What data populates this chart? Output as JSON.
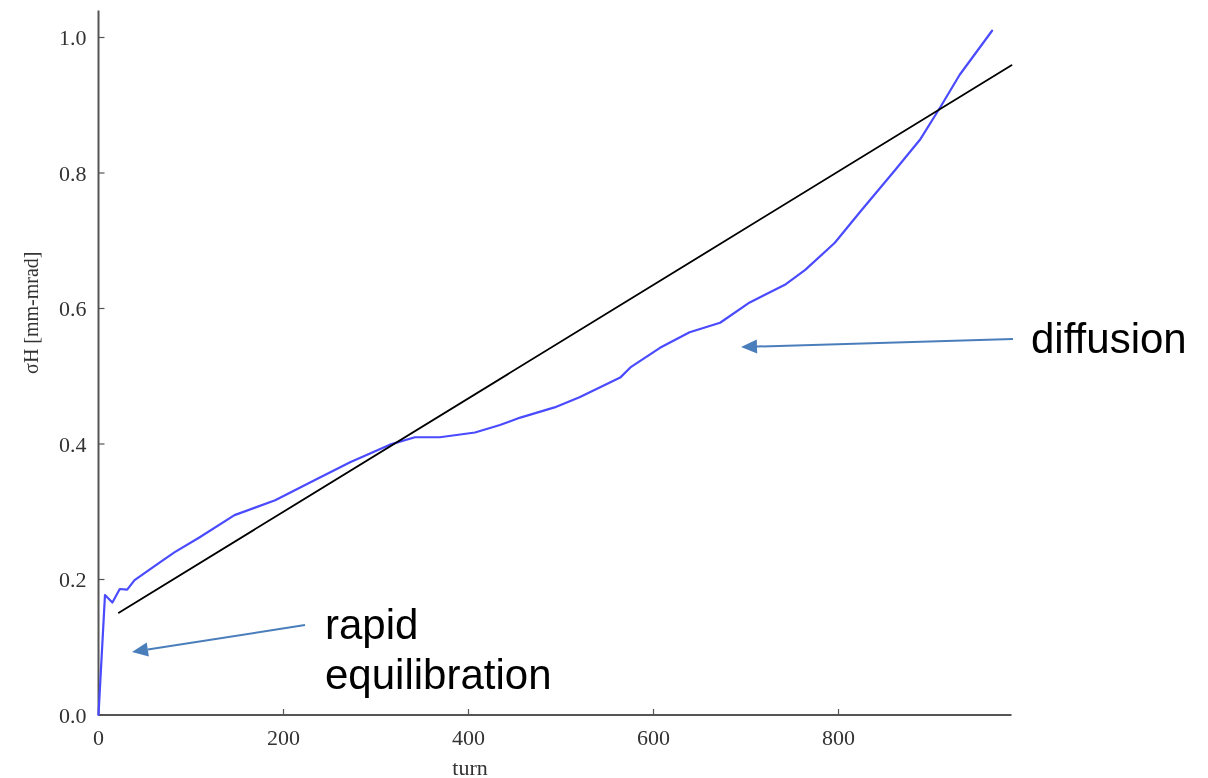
{
  "chart_data": {
    "type": "line",
    "xlabel": "turn",
    "ylabel": "σH [mm-mrad]",
    "xlim": [
      0,
      987
    ],
    "ylim": [
      0,
      1.04
    ],
    "xticks": [
      0,
      200,
      400,
      600,
      800
    ],
    "yticks": [
      {
        "value": 0,
        "label": "0.0"
      },
      {
        "value": 0.2,
        "label": "0.2"
      },
      {
        "value": 0.4,
        "label": "0.4"
      },
      {
        "value": 0.6,
        "label": "0.6"
      },
      {
        "value": 0.8,
        "label": "0.8"
      },
      {
        "value": 1,
        "label": "1.0"
      }
    ],
    "grid": false,
    "marker": "none",
    "line_style": "solid",
    "series": [
      {
        "color": "#4a4aff",
        "x": [
          0,
          7,
          15,
          23,
          31,
          39,
          66,
          82,
          109,
          147,
          191,
          234,
          272,
          315,
          342,
          369,
          407,
          434,
          456,
          493,
          520,
          564,
          575,
          607,
          639,
          672,
          704,
          742,
          764,
          796,
          823,
          861,
          888,
          910,
          931,
          966
        ],
        "values": [
          0,
          0.177,
          0.166,
          0.186,
          0.185,
          0.199,
          0.225,
          0.24,
          0.262,
          0.295,
          0.317,
          0.347,
          0.373,
          0.399,
          0.41,
          0.41,
          0.417,
          0.428,
          0.439,
          0.454,
          0.469,
          0.498,
          0.513,
          0.542,
          0.565,
          0.579,
          0.609,
          0.635,
          0.657,
          0.697,
          0.742,
          0.804,
          0.849,
          0.897,
          0.945,
          1.01
        ]
      },
      {
        "type": "line",
        "color": "#000000",
        "x": [
          22,
          987
        ],
        "values": [
          0.151,
          0.959
        ]
      }
    ],
    "annotations": [
      "rapid equilibration",
      "diffusion"
    ]
  }
}
